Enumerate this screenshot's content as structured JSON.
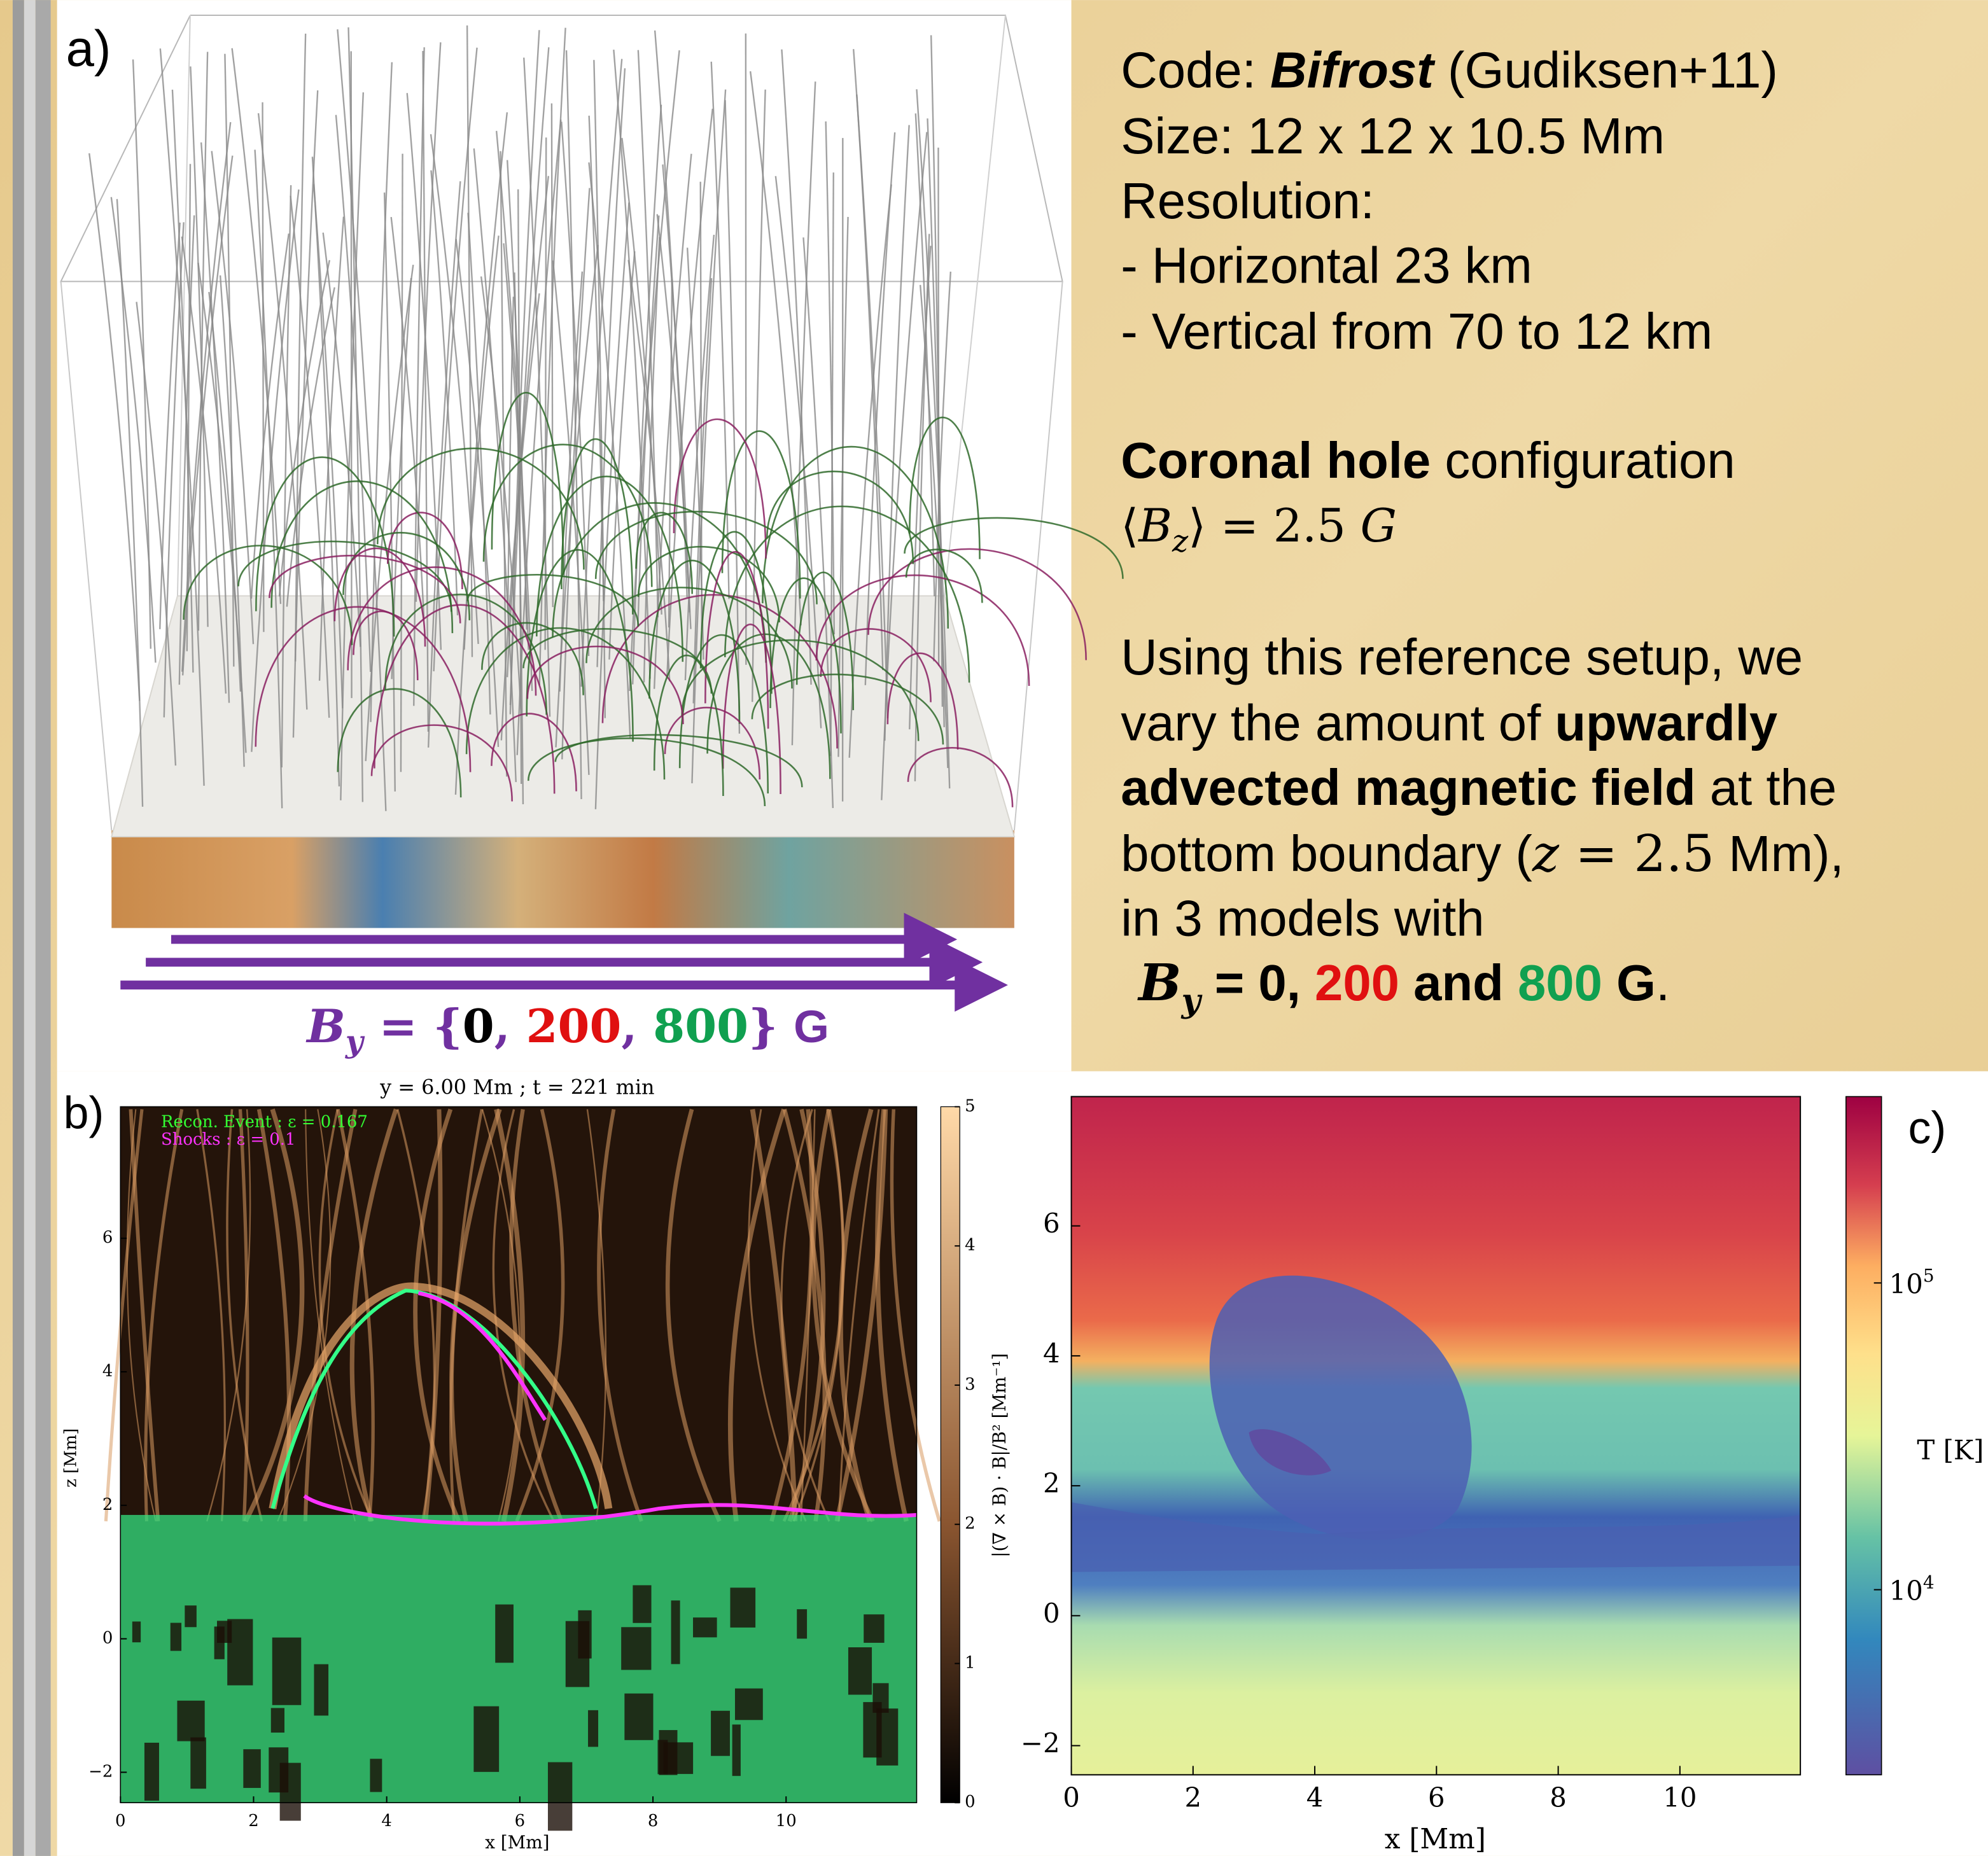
{
  "panel_a": {
    "label": "a)",
    "by": [
      "B",
      "y",
      " = {",
      "0",
      ", ",
      "200",
      ", ",
      "800",
      "} ",
      "G"
    ]
  },
  "info": {
    "lines": [
      [
        "Code: ",
        "Bifrost",
        " (Gudiksen+11)"
      ],
      [
        "Size: 12 x 12 x 10.5 Mm"
      ],
      [
        "Resolution:"
      ],
      [
        "- Horizontal 23 km"
      ],
      [
        "- Vertical from 70 to 12 km"
      ],
      [
        "Coronal hole",
        " configuration"
      ],
      [
        "⟨",
        "B",
        "z",
        "⟩ = 2.5 ",
        "G"
      ],
      [
        "Using this reference setup, we"
      ],
      [
        "vary the amount of ",
        "upwardly"
      ],
      [
        "advected magnetic field",
        " at the"
      ],
      [
        "bottom boundary (",
        "z",
        " = 2.5",
        " Mm),"
      ],
      [
        "in 3 models with"
      ],
      [
        "B",
        "y",
        " = 0, ",
        "200",
        " and ",
        "800",
        " G",
        "."
      ]
    ]
  },
  "panel_b": {
    "label": "b)",
    "title": "y = 6.00 Mm ; t = 221 min",
    "legend": [
      "Recon. Event : ε = 0.167",
      "Shocks : ε = 0.1"
    ],
    "xlabel": "x [Mm]",
    "ylabel": "z [Mm]",
    "xticks": [
      "0",
      "2",
      "4",
      "6",
      "8",
      "10"
    ],
    "yticks": [
      "−2",
      "0",
      "2",
      "4",
      "6"
    ],
    "colorbar_label": "|(∇ × B) · B|/B² [Mm⁻¹]",
    "colorbar_ticks": [
      "0",
      "1",
      "2",
      "3",
      "4",
      "5"
    ]
  },
  "panel_c": {
    "label": "c)",
    "xlabel": "x [Mm]",
    "xticks": [
      "0",
      "2",
      "4",
      "6",
      "8",
      "10"
    ],
    "yticks": [
      "−2",
      "0",
      "2",
      "4",
      "6"
    ],
    "colorbar_label": "T [K]",
    "colorbar_ticks": [
      {
        "base": "10",
        "exp": "4"
      },
      {
        "base": "10",
        "exp": "5"
      }
    ]
  }
}
